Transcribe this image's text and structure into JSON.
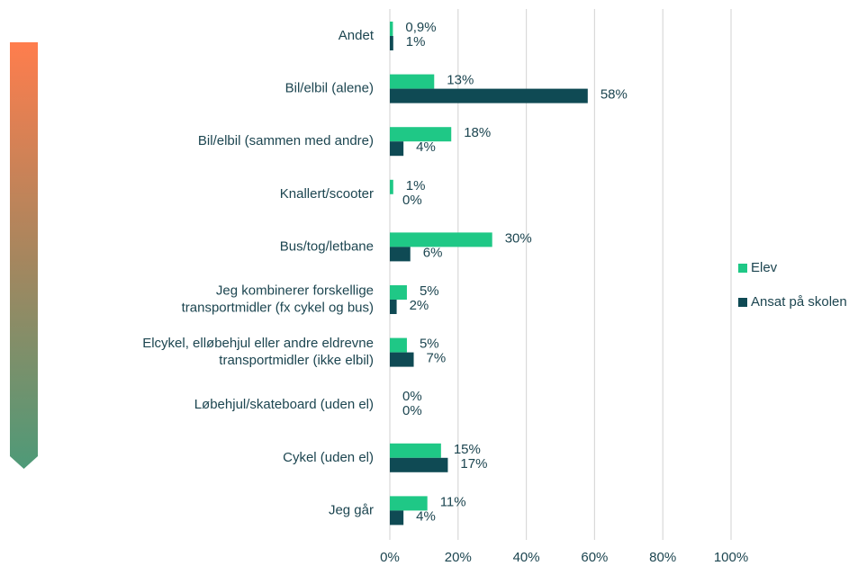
{
  "chart_data": {
    "type": "barh",
    "categories": [
      "Andet",
      "Bil/elbil (alene)",
      "Bil/elbil (sammen med andre)",
      "Knallert/scooter",
      "Bus/tog/letbane",
      [
        "Jeg kombinerer forskellige",
        "transportmidler (fx cykel og bus)"
      ],
      [
        "Elcykel, elløbehjul eller andre eldrevne",
        "transportmidler (ikke elbil)"
      ],
      "Løbehjul/skateboard (uden el)",
      "Cykel (uden el)",
      "Jeg går"
    ],
    "series": [
      {
        "name": "Elev",
        "color": "#1fc886",
        "values": [
          0.9,
          13,
          18,
          1,
          30,
          5,
          5,
          0,
          15,
          11
        ],
        "value_labels": [
          "0,9%",
          "13%",
          "18%",
          "1%",
          "30%",
          "5%",
          "5%",
          "0%",
          "15%",
          "11%"
        ]
      },
      {
        "name": "Ansat på skolen",
        "color": "#0f4a54",
        "values": [
          1,
          58,
          4,
          0,
          6,
          2,
          7,
          0,
          17,
          4
        ],
        "value_labels": [
          "1%",
          "58%",
          "4%",
          "0%",
          "6%",
          "2%",
          "7%",
          "0%",
          "17%",
          "4%"
        ]
      }
    ],
    "xlim": [
      0,
      100
    ],
    "xticks": [
      {
        "value": 0,
        "label": "0%"
      },
      {
        "value": 20,
        "label": "20%"
      },
      {
        "value": 40,
        "label": "40%"
      },
      {
        "value": 60,
        "label": "60%"
      },
      {
        "value": 80,
        "label": "80%"
      },
      {
        "value": 100,
        "label": "100%"
      }
    ],
    "grid": true,
    "legend": "right"
  }
}
